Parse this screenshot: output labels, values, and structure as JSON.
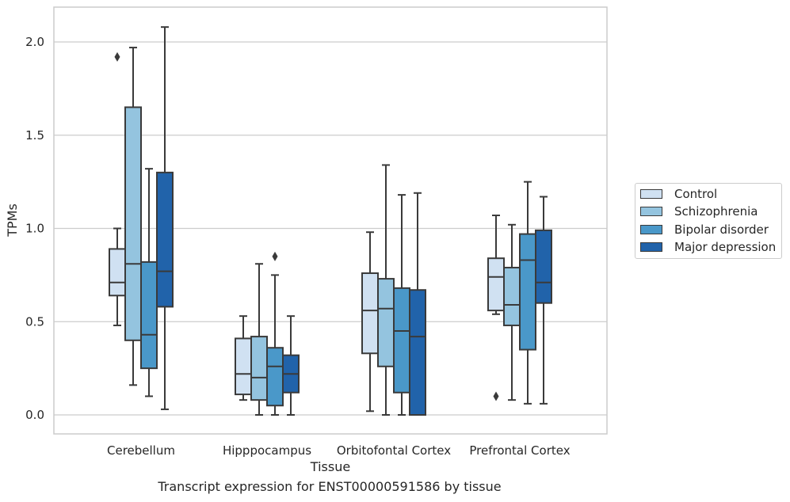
{
  "chart_data": {
    "type": "box",
    "title": "",
    "xlabel": "Tissue",
    "ylabel": "TPMs",
    "caption": "Transcript expression for ENST00000591586 by tissue",
    "ylim": [
      -0.1,
      2.2
    ],
    "yticks": [
      "0.0",
      "0.5",
      "1.0",
      "1.5",
      "2.0"
    ],
    "grid": true,
    "legend_position": "right",
    "categories": [
      "Cerebellum",
      "Hipppocampus",
      "Orbitofontal Cortex",
      "Prefrontal Cortex"
    ],
    "series": [
      {
        "name": "Control",
        "color": "#d0e1f2",
        "boxes": [
          {
            "whislo": 0.48,
            "q1": 0.64,
            "med": 0.71,
            "q3": 0.89,
            "whishi": 1.0,
            "fliers": [
              1.92
            ]
          },
          {
            "whislo": 0.08,
            "q1": 0.11,
            "med": 0.22,
            "q3": 0.41,
            "whishi": 0.53,
            "fliers": []
          },
          {
            "whislo": 0.02,
            "q1": 0.33,
            "med": 0.56,
            "q3": 0.76,
            "whishi": 0.98,
            "fliers": []
          },
          {
            "whislo": 0.54,
            "q1": 0.56,
            "med": 0.74,
            "q3": 0.84,
            "whishi": 1.07,
            "fliers": [
              0.1
            ]
          }
        ]
      },
      {
        "name": "Schizophrenia",
        "color": "#94c4df",
        "boxes": [
          {
            "whislo": 0.16,
            "q1": 0.4,
            "med": 0.81,
            "q3": 1.65,
            "whishi": 1.97,
            "fliers": []
          },
          {
            "whislo": 0.0,
            "q1": 0.08,
            "med": 0.2,
            "q3": 0.42,
            "whishi": 0.81,
            "fliers": []
          },
          {
            "whislo": 0.0,
            "q1": 0.26,
            "med": 0.57,
            "q3": 0.73,
            "whishi": 1.34,
            "fliers": []
          },
          {
            "whislo": 0.08,
            "q1": 0.48,
            "med": 0.59,
            "q3": 0.79,
            "whishi": 1.02,
            "fliers": []
          }
        ]
      },
      {
        "name": "Bipolar disorder",
        "color": "#4a98c9",
        "boxes": [
          {
            "whislo": 0.1,
            "q1": 0.25,
            "med": 0.43,
            "q3": 0.82,
            "whishi": 1.32,
            "fliers": []
          },
          {
            "whislo": 0.0,
            "q1": 0.05,
            "med": 0.26,
            "q3": 0.36,
            "whishi": 0.75,
            "fliers": [
              0.85
            ]
          },
          {
            "whislo": 0.0,
            "q1": 0.12,
            "med": 0.45,
            "q3": 0.68,
            "whishi": 1.18,
            "fliers": []
          },
          {
            "whislo": 0.06,
            "q1": 0.35,
            "med": 0.83,
            "q3": 0.97,
            "whishi": 1.25,
            "fliers": []
          }
        ]
      },
      {
        "name": "Major depression",
        "color": "#2163aa",
        "boxes": [
          {
            "whislo": 0.03,
            "q1": 0.58,
            "med": 0.77,
            "q3": 1.3,
            "whishi": 2.08,
            "fliers": []
          },
          {
            "whislo": 0.0,
            "q1": 0.12,
            "med": 0.22,
            "q3": 0.32,
            "whishi": 0.53,
            "fliers": []
          },
          {
            "whislo": 0.0,
            "q1": 0.0,
            "med": 0.42,
            "q3": 0.67,
            "whishi": 1.19,
            "fliers": []
          },
          {
            "whislo": 0.06,
            "q1": 0.6,
            "med": 0.71,
            "q3": 0.99,
            "whishi": 1.17,
            "fliers": []
          }
        ]
      }
    ]
  }
}
